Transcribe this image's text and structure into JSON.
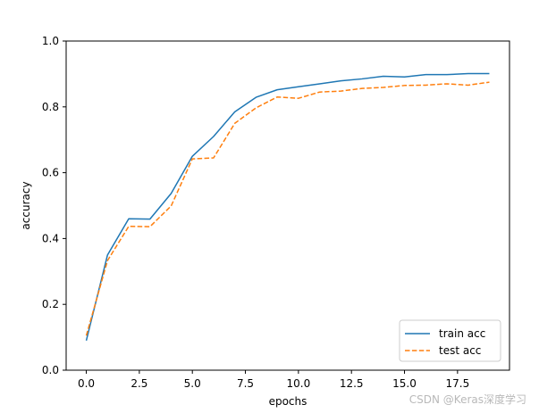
{
  "chart_data": {
    "type": "line",
    "title": "",
    "xlabel": "epochs",
    "ylabel": "accuracy",
    "xlim": [
      -0.95,
      19.95
    ],
    "ylim": [
      0.0,
      1.0
    ],
    "xticks": [
      0.0,
      2.5,
      5.0,
      7.5,
      10.0,
      12.5,
      15.0,
      17.5
    ],
    "xtick_labels": [
      "0.0",
      "2.5",
      "5.0",
      "7.5",
      "10.0",
      "12.5",
      "15.0",
      "17.5"
    ],
    "yticks": [
      0.0,
      0.2,
      0.4,
      0.6,
      0.8,
      1.0
    ],
    "ytick_labels": [
      "0.0",
      "0.2",
      "0.4",
      "0.6",
      "0.8",
      "1.0"
    ],
    "x": [
      0,
      1,
      2,
      3,
      4,
      5,
      6,
      7,
      8,
      9,
      10,
      11,
      12,
      13,
      14,
      15,
      16,
      17,
      18,
      19
    ],
    "series": [
      {
        "name": "train acc",
        "style": "solid",
        "color": "#1f77b4",
        "values": [
          0.09,
          0.35,
          0.46,
          0.459,
          0.537,
          0.65,
          0.71,
          0.785,
          0.829,
          0.852,
          0.861,
          0.87,
          0.879,
          0.885,
          0.893,
          0.891,
          0.898,
          0.898,
          0.901,
          0.901
        ]
      },
      {
        "name": "test acc",
        "style": "dashed",
        "color": "#ff7f0e",
        "values": [
          0.105,
          0.333,
          0.437,
          0.436,
          0.499,
          0.642,
          0.645,
          0.75,
          0.797,
          0.83,
          0.826,
          0.845,
          0.848,
          0.856,
          0.859,
          0.865,
          0.866,
          0.87,
          0.866,
          0.875
        ]
      }
    ],
    "legend_position": "bottom-right",
    "grid": false
  },
  "watermark": "CSDN @Keras深度学习"
}
